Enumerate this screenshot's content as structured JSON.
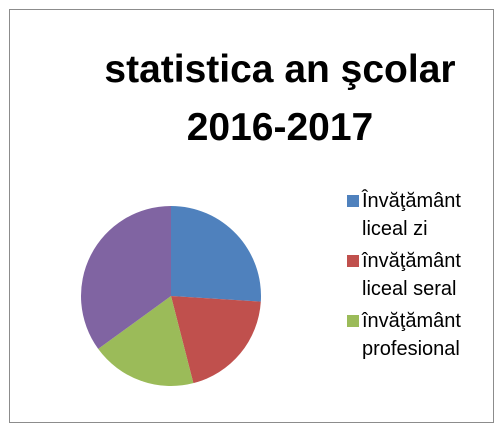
{
  "chart_data": {
    "type": "pie",
    "title": [
      "statistica an şcolar",
      "2016-2017"
    ],
    "categories": [
      "Învăţământ liceal zi",
      "învăţământ liceal seral",
      "învăţământ profesional",
      null
    ],
    "values": [
      26,
      20,
      19,
      35
    ],
    "colors": [
      "#4f81bd",
      "#c0504d",
      "#9bbb59",
      "#8064a2"
    ],
    "legend": "right"
  }
}
